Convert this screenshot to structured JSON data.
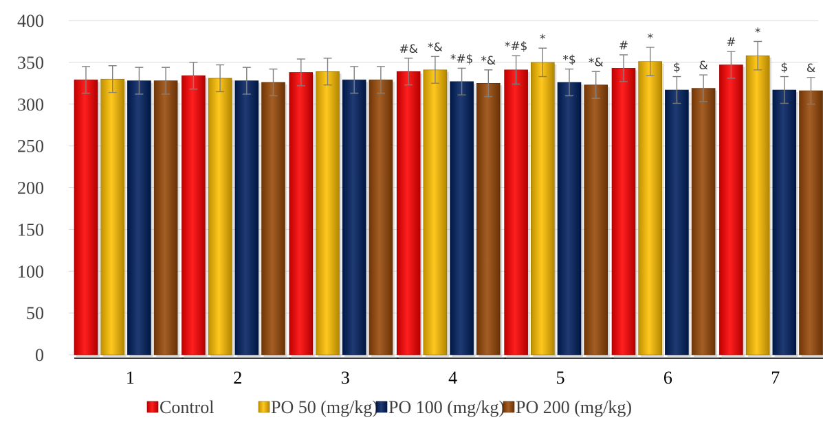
{
  "chart_data": {
    "type": "bar",
    "categories": [
      "1",
      "2",
      "3",
      "4",
      "5",
      "6",
      "7"
    ],
    "ylim": [
      0,
      400
    ],
    "yticks": [
      0,
      50,
      100,
      150,
      200,
      250,
      300,
      350,
      400
    ],
    "grid": true,
    "legend_position": "bottom",
    "series": [
      {
        "name": "Control",
        "color": "#ff0000",
        "values": [
          329,
          334,
          338,
          339,
          341,
          343,
          347
        ],
        "errors": [
          16,
          16,
          16,
          16,
          17,
          16,
          16
        ],
        "annotations": [
          "",
          "",
          "",
          "#&",
          "*#$",
          "#",
          "#"
        ]
      },
      {
        "name": "PO 50 (mg/kg)",
        "color": "#ffc000",
        "values": [
          330,
          331,
          339,
          341,
          350,
          351,
          358
        ],
        "errors": [
          16,
          16,
          16,
          16,
          17,
          17,
          17
        ],
        "annotations": [
          "",
          "",
          "",
          "*&",
          "*",
          "*",
          "*"
        ]
      },
      {
        "name": "PO 100 (mg/kg)",
        "color": "#002060",
        "values": [
          328,
          328,
          329,
          327,
          326,
          317,
          317
        ],
        "errors": [
          16,
          16,
          16,
          16,
          16,
          16,
          16
        ],
        "annotations": [
          "",
          "",
          "",
          "*#$",
          "*$",
          "$",
          "$"
        ]
      },
      {
        "name": "PO 200 (mg/kg)",
        "color": "#984807",
        "values": [
          328,
          326,
          329,
          325,
          323,
          319,
          316
        ],
        "errors": [
          16,
          16,
          16,
          16,
          16,
          16,
          16
        ],
        "annotations": [
          "",
          "",
          "",
          "*&",
          "*&",
          "&",
          "&"
        ]
      }
    ]
  }
}
